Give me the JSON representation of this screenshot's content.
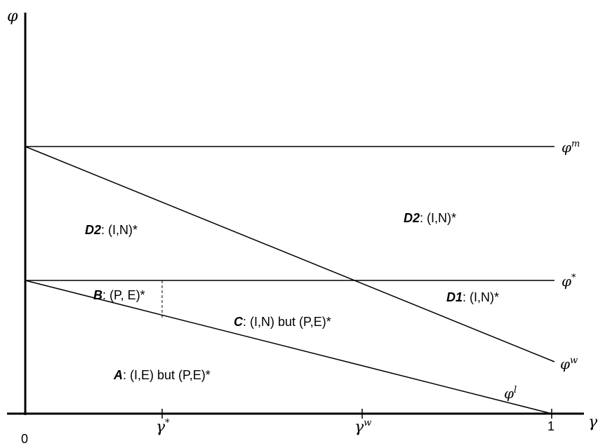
{
  "axes": {
    "y_symbol": "φ",
    "x_symbol": "γ",
    "origin_label": "0",
    "x_end_label": "1",
    "x_ticks": [
      {
        "base": "γ",
        "sup": "*"
      },
      {
        "base": "γ",
        "sup": "w"
      }
    ]
  },
  "curves": {
    "phi_m": {
      "base": "φ",
      "sup": "m"
    },
    "phi_star": {
      "base": "φ",
      "sup": "*"
    },
    "phi_w": {
      "base": "φ",
      "sup": "w"
    },
    "phi_l": {
      "base": "φ",
      "sup": "l"
    }
  },
  "regions": {
    "d2_left": {
      "key": "D2",
      "text": ": (I,N)*"
    },
    "d2_right": {
      "key": "D2",
      "text": ": (I,N)*"
    },
    "b": {
      "key": "B",
      "text": ": (P, E)*"
    },
    "c": {
      "key": "C",
      "text": ": (I,N) but (P,E)*"
    },
    "d1": {
      "key": "D1",
      "text": ": (I,N)*"
    },
    "a": {
      "key": "A",
      "text": ": (I,E) but (P,E)*"
    }
  }
}
